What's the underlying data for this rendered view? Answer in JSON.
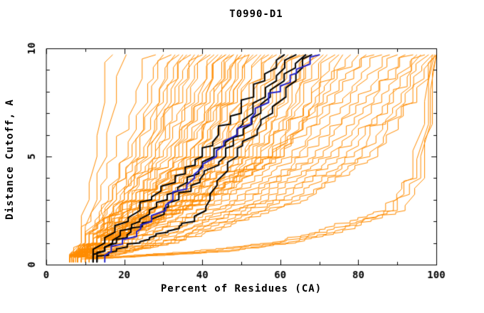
{
  "chart_data": {
    "type": "line",
    "title": "T0990-D1",
    "xlabel": "Percent of Residues (CA)",
    "ylabel": "Distance Cutoff, A",
    "xlim": [
      0,
      100
    ],
    "ylim": [
      0,
      10
    ],
    "x_major_ticks": [
      0,
      20,
      40,
      60,
      80,
      100
    ],
    "x_minor_step": 10,
    "y_major_ticks": [
      0,
      5,
      10
    ],
    "y_minor_step": 1,
    "grid": false,
    "legend": "none",
    "background_color": "#ffffff",
    "axis_color": "#000000",
    "series_groups": [
      {
        "name": "prediction-curves",
        "color": "#ff8c00",
        "line_width": 1,
        "cutoffs": [
          0.25,
          1,
          3,
          5,
          7.5,
          9.7
        ],
        "curves": [
          [
            7,
            9,
            11,
            13,
            15,
            17
          ],
          [
            7.5,
            10,
            13,
            15.5,
            18,
            20.5
          ],
          [
            6,
            9,
            14,
            18,
            23,
            28
          ],
          [
            7,
            10,
            16,
            21,
            26,
            30
          ],
          [
            6.5,
            10,
            17,
            22,
            27,
            32
          ],
          [
            8,
            12,
            18,
            24,
            29,
            33
          ],
          [
            6,
            10,
            17,
            23,
            29,
            34
          ],
          [
            7,
            11,
            18,
            25,
            30,
            35
          ],
          [
            9,
            13,
            20,
            26,
            31,
            36
          ],
          [
            6,
            11,
            19,
            26,
            32,
            37
          ],
          [
            7.5,
            12,
            20,
            27,
            33,
            38
          ],
          [
            8,
            13,
            21,
            28,
            34,
            39
          ],
          [
            6,
            11,
            20,
            28,
            35,
            40
          ],
          [
            7,
            12,
            21,
            29,
            36,
            41
          ],
          [
            9,
            14,
            22,
            30,
            37,
            42
          ],
          [
            6.5,
            12,
            22,
            31,
            38,
            43
          ],
          [
            8,
            13,
            23,
            32,
            39,
            44
          ],
          [
            7,
            13,
            24,
            33,
            40,
            45
          ],
          [
            9,
            15,
            25,
            34,
            41,
            46
          ],
          [
            6,
            12,
            23,
            33,
            41,
            46
          ],
          [
            7,
            13,
            25,
            35,
            42,
            47
          ],
          [
            8,
            14,
            26,
            36,
            43,
            48
          ],
          [
            6,
            13,
            25,
            36,
            43,
            48
          ],
          [
            7,
            14,
            27,
            37,
            44,
            49
          ],
          [
            9,
            16,
            28,
            38,
            45,
            50
          ],
          [
            6.5,
            13,
            26,
            37,
            45,
            50
          ],
          [
            8,
            15,
            28,
            39,
            46,
            51
          ],
          [
            7,
            14,
            28,
            40,
            47,
            52
          ],
          [
            9,
            16,
            29,
            41,
            48,
            52
          ],
          [
            6,
            13,
            27,
            40,
            48,
            53
          ],
          [
            7,
            15,
            29,
            42,
            49,
            54
          ],
          [
            8,
            16,
            30,
            43,
            50,
            55
          ],
          [
            6,
            14,
            29,
            42,
            50,
            56
          ],
          [
            7,
            15,
            31,
            44,
            52,
            57
          ],
          [
            9,
            17,
            32,
            45,
            53,
            58
          ],
          [
            6.5,
            14,
            31,
            45,
            53,
            59
          ],
          [
            8,
            16,
            33,
            46,
            54,
            60
          ],
          [
            7,
            15,
            33,
            47,
            55,
            61
          ],
          [
            9,
            17,
            34,
            48,
            56,
            62
          ],
          [
            6,
            14,
            33,
            48,
            57,
            63
          ],
          [
            7,
            16,
            35,
            50,
            58,
            64
          ],
          [
            8,
            17,
            36,
            51,
            59,
            65
          ],
          [
            6,
            15,
            35,
            51,
            60,
            66
          ],
          [
            7,
            16,
            37,
            52,
            61,
            67
          ],
          [
            9,
            18,
            38,
            53,
            62,
            68
          ],
          [
            7,
            16,
            38,
            54,
            63,
            69
          ],
          [
            8,
            17,
            39,
            55,
            64,
            70
          ],
          [
            6,
            15,
            38,
            55,
            65,
            71
          ],
          [
            7,
            17,
            40,
            57,
            66,
            72
          ],
          [
            9,
            18,
            41,
            58,
            68,
            74
          ],
          [
            7,
            16,
            40,
            58,
            68,
            75
          ],
          [
            8,
            18,
            42,
            60,
            70,
            76
          ],
          [
            7,
            17,
            41,
            59,
            69,
            78
          ],
          [
            8,
            18,
            43,
            61,
            71,
            80
          ],
          [
            8,
            18,
            40,
            58,
            72,
            82
          ],
          [
            9,
            20,
            43,
            61,
            74,
            84
          ],
          [
            8,
            21,
            45,
            63,
            76,
            86
          ],
          [
            10,
            22,
            47,
            65,
            78,
            88
          ],
          [
            9,
            23,
            49,
            67,
            80,
            90
          ],
          [
            10,
            25,
            51,
            69,
            82,
            92
          ],
          [
            11,
            26,
            53,
            71,
            84,
            94
          ],
          [
            10,
            27,
            55,
            73,
            86,
            95
          ],
          [
            11,
            28,
            57,
            75,
            88,
            96
          ],
          [
            12,
            30,
            59,
            77,
            89,
            97
          ],
          [
            11,
            30,
            61,
            79,
            91,
            98
          ],
          [
            12,
            32,
            63,
            81,
            92,
            99
          ],
          [
            13,
            33,
            65,
            83,
            94,
            100
          ],
          [
            12,
            34,
            67,
            85,
            95,
            100
          ]
        ]
      },
      {
        "name": "flat-late-rising-curves",
        "color": "#ff8c00",
        "line_width": 1,
        "cutoffs": [
          0.25,
          0.6,
          1,
          1.5,
          2.5,
          4,
          6.5,
          9.7
        ],
        "curves": [
          [
            9,
            38,
            58,
            70,
            87,
            94,
            97,
            99
          ],
          [
            10,
            41,
            60,
            72,
            89,
            95,
            98,
            99.5
          ],
          [
            11,
            44,
            62,
            74,
            90,
            96,
            98.5,
            100
          ],
          [
            12,
            47,
            64,
            76,
            92,
            97,
            99,
            100
          ]
        ]
      },
      {
        "name": "highlighted-model-curves",
        "color": "#000000",
        "line_width": 2,
        "cutoffs": [
          0.25,
          1,
          2,
          3,
          5,
          7,
          8.5,
          9.7
        ],
        "curves": [
          [
            12,
            15,
            21,
            27,
            40,
            50,
            56,
            61
          ],
          [
            12,
            17,
            24,
            31,
            43,
            53,
            59,
            64
          ],
          [
            13,
            18,
            27,
            34,
            46,
            55,
            61,
            66.5
          ],
          [
            13,
            24,
            38,
            42,
            49,
            58,
            64,
            68
          ]
        ]
      },
      {
        "name": "reference-model-curve",
        "color": "#2222cc",
        "line_width": 2,
        "cutoffs": [
          0.25,
          2,
          4,
          6,
          8,
          9.7
        ],
        "curves": [
          [
            15,
            27,
            38,
            49,
            60,
            70
          ]
        ]
      }
    ]
  }
}
